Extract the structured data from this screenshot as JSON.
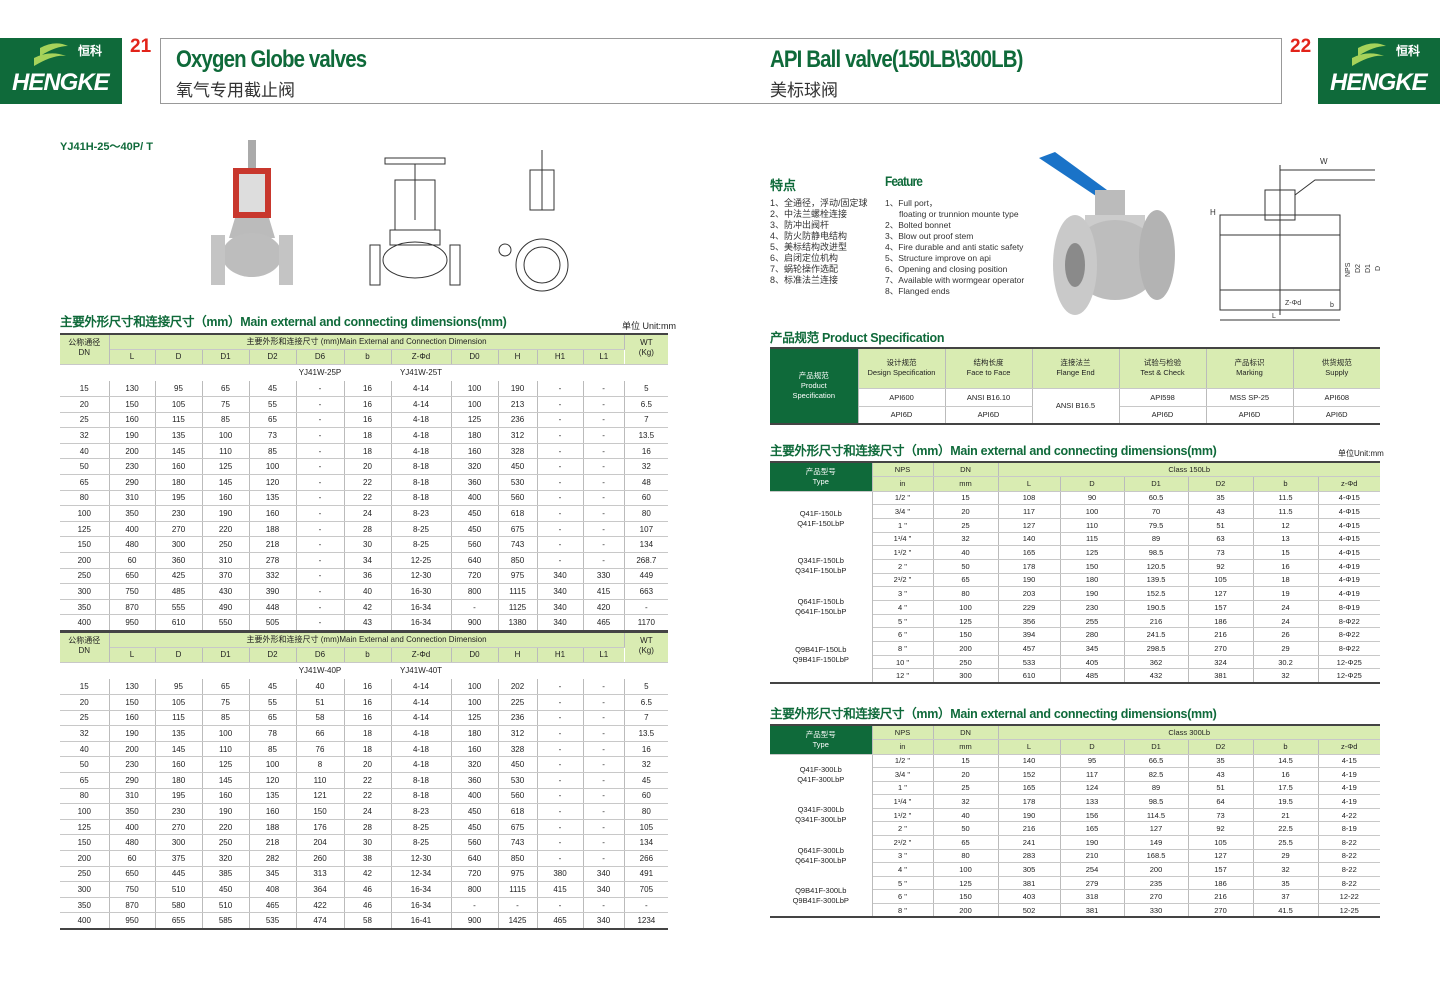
{
  "brand": {
    "name": "HENGKE",
    "name_cn": "恒科"
  },
  "left": {
    "page_number": "21",
    "title": "Oxygen Globe valves",
    "subtitle": "氧气专用截止阀",
    "model": "YJ41H-25～40P/ T",
    "section_title": "主要外形尺寸和连接尺寸（mm）Main external and connecting dimensions(mm)",
    "unit": "单位 Unit:mm",
    "header": {
      "dn_cn": "公称通径",
      "dn_en": "DN",
      "main": "主要外形和连接尺寸 (mm)Main External and Connection Dimension",
      "wt": "WT",
      "wt_unit": "(Kg)",
      "columns": [
        "L",
        "D",
        "D1",
        "D2",
        "D6",
        "b",
        "Z-Φd",
        "D0",
        "H",
        "H1",
        "L1"
      ]
    },
    "tables": [
      {
        "models": [
          "YJ41W-25P",
          "YJ41W-25T"
        ],
        "rows": [
          [
            "15",
            "130",
            "95",
            "65",
            "45",
            "-",
            "16",
            "4-14",
            "100",
            "190",
            "-",
            "-",
            "5"
          ],
          [
            "20",
            "150",
            "105",
            "75",
            "55",
            "-",
            "16",
            "4-14",
            "100",
            "213",
            "-",
            "-",
            "6.5"
          ],
          [
            "25",
            "160",
            "115",
            "85",
            "65",
            "-",
            "16",
            "4-18",
            "125",
            "236",
            "-",
            "-",
            "7"
          ],
          [
            "32",
            "190",
            "135",
            "100",
            "73",
            "-",
            "18",
            "4-18",
            "180",
            "312",
            "-",
            "-",
            "13.5"
          ],
          [
            "40",
            "200",
            "145",
            "110",
            "85",
            "-",
            "18",
            "4-18",
            "160",
            "328",
            "-",
            "-",
            "16"
          ],
          [
            "50",
            "230",
            "160",
            "125",
            "100",
            "-",
            "20",
            "8-18",
            "320",
            "450",
            "-",
            "-",
            "32"
          ],
          [
            "65",
            "290",
            "180",
            "145",
            "120",
            "-",
            "22",
            "8-18",
            "360",
            "530",
            "-",
            "-",
            "48"
          ],
          [
            "80",
            "310",
            "195",
            "160",
            "135",
            "-",
            "22",
            "8-18",
            "400",
            "560",
            "-",
            "-",
            "60"
          ],
          [
            "100",
            "350",
            "230",
            "190",
            "160",
            "-",
            "24",
            "8-23",
            "450",
            "618",
            "-",
            "-",
            "80"
          ],
          [
            "125",
            "400",
            "270",
            "220",
            "188",
            "-",
            "28",
            "8-25",
            "450",
            "675",
            "-",
            "-",
            "107"
          ],
          [
            "150",
            "480",
            "300",
            "250",
            "218",
            "-",
            "30",
            "8-25",
            "560",
            "743",
            "-",
            "-",
            "134"
          ],
          [
            "200",
            "60",
            "360",
            "310",
            "278",
            "-",
            "34",
            "12-25",
            "640",
            "850",
            "-",
            "-",
            "268.7"
          ],
          [
            "250",
            "650",
            "425",
            "370",
            "332",
            "-",
            "36",
            "12-30",
            "720",
            "975",
            "340",
            "330",
            "449"
          ],
          [
            "300",
            "750",
            "485",
            "430",
            "390",
            "-",
            "40",
            "16-30",
            "800",
            "1115",
            "340",
            "415",
            "663"
          ],
          [
            "350",
            "870",
            "555",
            "490",
            "448",
            "-",
            "42",
            "16-34",
            "-",
            "1125",
            "340",
            "420",
            "-"
          ],
          [
            "400",
            "950",
            "610",
            "550",
            "505",
            "-",
            "43",
            "16-34",
            "900",
            "1380",
            "340",
            "465",
            "1170"
          ]
        ]
      },
      {
        "models": [
          "YJ41W-40P",
          "YJ41W-40T"
        ],
        "rows": [
          [
            "15",
            "130",
            "95",
            "65",
            "45",
            "40",
            "16",
            "4-14",
            "100",
            "202",
            "-",
            "-",
            "5"
          ],
          [
            "20",
            "150",
            "105",
            "75",
            "55",
            "51",
            "16",
            "4-14",
            "100",
            "225",
            "-",
            "-",
            "6.5"
          ],
          [
            "25",
            "160",
            "115",
            "85",
            "65",
            "58",
            "16",
            "4-14",
            "125",
            "236",
            "-",
            "-",
            "7"
          ],
          [
            "32",
            "190",
            "135",
            "100",
            "78",
            "66",
            "18",
            "4-18",
            "180",
            "312",
            "-",
            "-",
            "13.5"
          ],
          [
            "40",
            "200",
            "145",
            "110",
            "85",
            "76",
            "18",
            "4-18",
            "160",
            "328",
            "-",
            "-",
            "16"
          ],
          [
            "50",
            "230",
            "160",
            "125",
            "100",
            "8",
            "20",
            "4-18",
            "320",
            "450",
            "-",
            "-",
            "32"
          ],
          [
            "65",
            "290",
            "180",
            "145",
            "120",
            "110",
            "22",
            "8-18",
            "360",
            "530",
            "-",
            "-",
            "45"
          ],
          [
            "80",
            "310",
            "195",
            "160",
            "135",
            "121",
            "22",
            "8-18",
            "400",
            "560",
            "-",
            "-",
            "60"
          ],
          [
            "100",
            "350",
            "230",
            "190",
            "160",
            "150",
            "24",
            "8-23",
            "450",
            "618",
            "-",
            "-",
            "80"
          ],
          [
            "125",
            "400",
            "270",
            "220",
            "188",
            "176",
            "28",
            "8-25",
            "450",
            "675",
            "-",
            "-",
            "105"
          ],
          [
            "150",
            "480",
            "300",
            "250",
            "218",
            "204",
            "30",
            "8-25",
            "560",
            "743",
            "-",
            "-",
            "134"
          ],
          [
            "200",
            "60",
            "375",
            "320",
            "282",
            "260",
            "38",
            "12-30",
            "640",
            "850",
            "-",
            "-",
            "266"
          ],
          [
            "250",
            "650",
            "445",
            "385",
            "345",
            "313",
            "42",
            "12-34",
            "720",
            "975",
            "380",
            "340",
            "491"
          ],
          [
            "300",
            "750",
            "510",
            "450",
            "408",
            "364",
            "46",
            "16-34",
            "800",
            "1115",
            "415",
            "340",
            "705"
          ],
          [
            "350",
            "870",
            "580",
            "510",
            "465",
            "422",
            "46",
            "16-34",
            "-",
            "-",
            "-",
            "-",
            "-"
          ],
          [
            "400",
            "950",
            "655",
            "585",
            "535",
            "474",
            "58",
            "16-41",
            "900",
            "1425",
            "465",
            "340",
            "1234"
          ]
        ]
      }
    ]
  },
  "right": {
    "page_number": "22",
    "title": "API Ball valve(150LB\\300LB)",
    "subtitle": "美标球阀",
    "features_cn_title": "特点",
    "features_cn": [
      "1、全通径，浮动/固定球",
      "2、中法兰螺栓连接",
      "3、防冲出阀杆",
      "4、防火防静电结构",
      "5、美标结构改进型",
      "6、启闭定位机构",
      "7、蜗轮操作选配",
      "8、标准法兰连接"
    ],
    "features_en_title": "Feature",
    "features_en": [
      "1、Full port，",
      "floating or trunnion mounte type",
      "2、Bolted bonnet",
      "3、Blow out proof stem",
      "4、Fire durable and anti static safety",
      "5、Structure improve on api",
      "6、Opening and closing position",
      "7、Available with wormgear operator",
      "8、Flanged ends"
    ],
    "spec_title": "产品规范  Product Specification",
    "spec": {
      "label": [
        "产品规范",
        "Product",
        "Specification"
      ],
      "headers": [
        [
          "设计规范",
          "Design Specification"
        ],
        [
          "结构长度",
          "Face to Face"
        ],
        [
          "连接法兰",
          "Flange End"
        ],
        [
          "试验与检验",
          "Test & Check"
        ],
        [
          "产品标识",
          "Marking"
        ],
        [
          "供货规范",
          "Supply"
        ]
      ],
      "row1": [
        "API600",
        "ANSI B16.10",
        "ANSI B16.5",
        "API598",
        "MSS SP-25",
        "API608"
      ],
      "row2": [
        "API6D",
        "API6D",
        "API6D",
        "API6D",
        "API6D"
      ]
    },
    "section_title": "主要外形尺寸和连接尺寸（mm）Main external and connecting dimensions(mm)",
    "unit": "单位Unit:mm",
    "dim_header": {
      "type_cn": "产品型号",
      "type_en": "Type",
      "nps": "NPS",
      "nps_unit": "in",
      "dn": "DN",
      "dn_unit": "mm",
      "columns": [
        "L",
        "D",
        "D1",
        "D2",
        "b",
        "z-Φd"
      ]
    },
    "tables": [
      {
        "class": "Class 150Lb",
        "groups": [
          {
            "types": [
              "Q41F-150Lb",
              "Q41F-150LbP"
            ],
            "rows": [
              [
                "1/2 \"",
                "15",
                "108",
                "90",
                "60.5",
                "35",
                "11.5",
                "4-Φ15"
              ],
              [
                "3/4 \"",
                "20",
                "117",
                "100",
                "70",
                "43",
                "11.5",
                "4-Φ15"
              ],
              [
                "1 \"",
                "25",
                "127",
                "110",
                "79.5",
                "51",
                "12",
                "4-Φ15"
              ],
              [
                "1¹/4 \"",
                "32",
                "140",
                "115",
                "89",
                "63",
                "13",
                "4-Φ15"
              ]
            ]
          },
          {
            "types": [
              "Q341F-150Lb",
              "Q341F-150LbP"
            ],
            "rows": [
              [
                "1¹/2 \"",
                "40",
                "165",
                "125",
                "98.5",
                "73",
                "15",
                "4-Φ15"
              ],
              [
                "2 \"",
                "50",
                "178",
                "150",
                "120.5",
                "92",
                "16",
                "4-Φ19"
              ],
              [
                "2¹/2 \"",
                "65",
                "190",
                "180",
                "139.5",
                "105",
                "18",
                "4-Φ19"
              ]
            ]
          },
          {
            "types": [
              "Q641F-150Lb",
              "Q641F-150LbP"
            ],
            "rows": [
              [
                "3 \"",
                "80",
                "203",
                "190",
                "152.5",
                "127",
                "19",
                "4-Φ19"
              ],
              [
                "4 \"",
                "100",
                "229",
                "230",
                "190.5",
                "157",
                "24",
                "8-Φ19"
              ],
              [
                "5 \"",
                "125",
                "356",
                "255",
                "216",
                "186",
                "24",
                "8-Φ22"
              ]
            ]
          },
          {
            "types": [
              "Q9B41F-150Lb",
              "Q9B41F-150LbP"
            ],
            "rows": [
              [
                "6 \"",
                "150",
                "394",
                "280",
                "241.5",
                "216",
                "26",
                "8-Φ22"
              ],
              [
                "8 \"",
                "200",
                "457",
                "345",
                "298.5",
                "270",
                "29",
                "8-Φ22"
              ],
              [
                "10 \"",
                "250",
                "533",
                "405",
                "362",
                "324",
                "30.2",
                "12-Φ25"
              ],
              [
                "12 \"",
                "300",
                "610",
                "485",
                "432",
                "381",
                "32",
                "12-Φ25"
              ]
            ]
          }
        ]
      },
      {
        "class": "Class 300Lb",
        "groups": [
          {
            "types": [
              "Q41F-300Lb",
              "Q41F-300LbP"
            ],
            "rows": [
              [
                "1/2 \"",
                "15",
                "140",
                "95",
                "66.5",
                "35",
                "14.5",
                "4-15"
              ],
              [
                "3/4 \"",
                "20",
                "152",
                "117",
                "82.5",
                "43",
                "16",
                "4-19"
              ],
              [
                "1 \"",
                "25",
                "165",
                "124",
                "89",
                "51",
                "17.5",
                "4-19"
              ]
            ]
          },
          {
            "types": [
              "Q341F-300Lb",
              "Q341F-300LbP"
            ],
            "rows": [
              [
                "1¹/4 \"",
                "32",
                "178",
                "133",
                "98.5",
                "64",
                "19.5",
                "4-19"
              ],
              [
                "1¹/2 \"",
                "40",
                "190",
                "156",
                "114.5",
                "73",
                "21",
                "4-22"
              ],
              [
                "2 \"",
                "50",
                "216",
                "165",
                "127",
                "92",
                "22.5",
                "8-19"
              ]
            ]
          },
          {
            "types": [
              "Q641F-300Lb",
              "Q641F-300LbP"
            ],
            "rows": [
              [
                "2¹/2 \"",
                "65",
                "241",
                "190",
                "149",
                "105",
                "25.5",
                "8-22"
              ],
              [
                "3 \"",
                "80",
                "283",
                "210",
                "168.5",
                "127",
                "29",
                "8-22"
              ],
              [
                "4 \"",
                "100",
                "305",
                "254",
                "200",
                "157",
                "32",
                "8-22"
              ]
            ]
          },
          {
            "types": [
              "Q9B41F-300Lb",
              "Q9B41F-300LbP"
            ],
            "rows": [
              [
                "5 \"",
                "125",
                "381",
                "279",
                "235",
                "186",
                "35",
                "8-22"
              ],
              [
                "6 \"",
                "150",
                "403",
                "318",
                "270",
                "216",
                "37",
                "12-22"
              ],
              [
                "8 \"",
                "200",
                "502",
                "381",
                "330",
                "270",
                "41.5",
                "12-25"
              ]
            ]
          }
        ]
      }
    ],
    "drawing_labels": [
      "W",
      "H",
      "NPS",
      "D2",
      "D1",
      "D",
      "Z-Φd",
      "b",
      "L"
    ]
  },
  "colors": {
    "brand_green": "#0f6a3a",
    "header_green": "#d9ecb2",
    "page_number_red": "#e2231a",
    "handle_blue": "#1a73c8",
    "valve_red": "#c8372d"
  }
}
